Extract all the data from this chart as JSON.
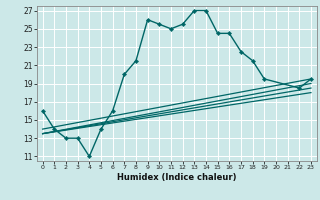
{
  "xlabel": "Humidex (Indice chaleur)",
  "ylabel": "",
  "bg_color": "#cce8e8",
  "grid_color": "#ffffff",
  "line_color": "#006666",
  "xlim": [
    -0.5,
    23.5
  ],
  "ylim": [
    10.5,
    27.5
  ],
  "xticks": [
    0,
    1,
    2,
    3,
    4,
    5,
    6,
    7,
    8,
    9,
    10,
    11,
    12,
    13,
    14,
    15,
    16,
    17,
    18,
    19,
    20,
    21,
    22,
    23
  ],
  "yticks": [
    11,
    13,
    15,
    17,
    19,
    21,
    23,
    25,
    27
  ],
  "main_series_x": [
    0,
    1,
    2,
    3,
    4,
    5,
    6,
    7,
    8,
    9,
    10,
    11,
    12,
    13,
    14,
    15,
    16,
    17,
    18,
    19,
    22,
    23
  ],
  "main_series_y": [
    16,
    14,
    13,
    13,
    11,
    14,
    16,
    20,
    21.5,
    26,
    25.5,
    25,
    25.5,
    27,
    27,
    24.5,
    24.5,
    22.5,
    21.5,
    19.5,
    18.5,
    19.5
  ],
  "linear_series": [
    {
      "x": [
        0,
        23
      ],
      "y": [
        13.5,
        19.0
      ]
    },
    {
      "x": [
        0,
        23
      ],
      "y": [
        13.5,
        18.5
      ]
    },
    {
      "x": [
        0,
        23
      ],
      "y": [
        13.5,
        18.0
      ]
    },
    {
      "x": [
        0,
        23
      ],
      "y": [
        14.0,
        19.5
      ]
    }
  ],
  "figsize": [
    3.2,
    2.0
  ],
  "dpi": 100
}
